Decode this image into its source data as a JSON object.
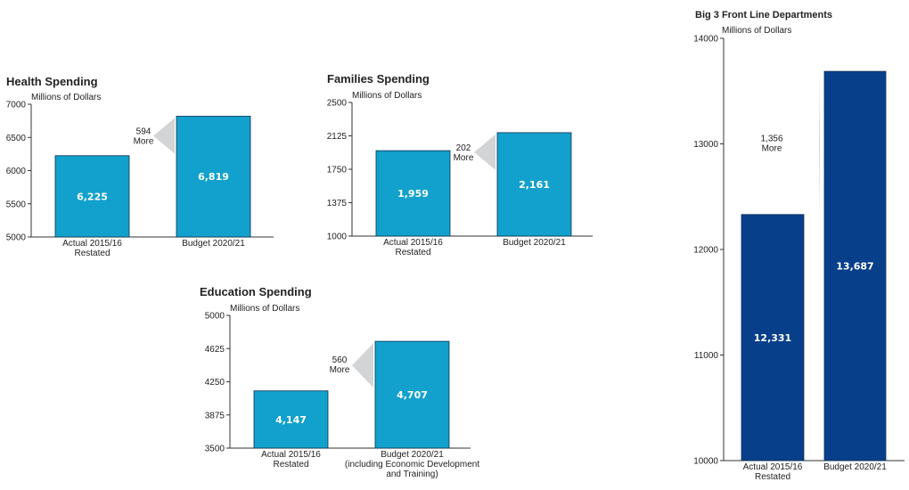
{
  "chart_data": [
    {
      "type": "bar",
      "title": "Health Spending",
      "ylabel": "Millions of Dollars",
      "ylim": [
        5000,
        7000
      ],
      "yticks": [
        5000,
        5500,
        6000,
        6500,
        7000
      ],
      "categories": [
        [
          "Actual 2015/16",
          "Restated"
        ],
        [
          "Budget 2020/21"
        ]
      ],
      "values": [
        6225,
        6819
      ],
      "value_labels": [
        "6,225",
        "6,819"
      ],
      "bar_color": "#12a1cc",
      "annotation": [
        "594",
        "More"
      ]
    },
    {
      "type": "bar",
      "title": "Families Spending",
      "ylabel": "Millions of Dollars",
      "ylim": [
        1000,
        2500
      ],
      "yticks": [
        1000,
        1375,
        1750,
        2125,
        2500
      ],
      "categories": [
        [
          "Actual 2015/16",
          "Restated"
        ],
        [
          "Budget 2020/21"
        ]
      ],
      "values": [
        1959,
        2161
      ],
      "value_labels": [
        "1,959",
        "2,161"
      ],
      "bar_color": "#12a1cc",
      "annotation": [
        "202",
        "More"
      ]
    },
    {
      "type": "bar",
      "title": "Education Spending",
      "ylabel": "Millions of Dollars",
      "ylim": [
        3500,
        5000
      ],
      "yticks": [
        3500,
        3875,
        4250,
        4625,
        5000
      ],
      "categories": [
        [
          "Actual 2015/16",
          "Restated"
        ],
        [
          "Budget 2020/21",
          "(including Economic Development",
          "and Training)"
        ]
      ],
      "values": [
        4147,
        4707
      ],
      "value_labels": [
        "4,147",
        "4,707"
      ],
      "bar_color": "#12a1cc",
      "annotation": [
        "560",
        "More"
      ]
    },
    {
      "type": "bar",
      "title": "Big 3 Front Line Departments",
      "ylabel": "Millions of Dollars",
      "ylim": [
        10000,
        14000
      ],
      "yticks": [
        10000,
        11000,
        12000,
        13000,
        14000
      ],
      "categories": [
        [
          "Actual 2015/16",
          "Restated"
        ],
        [
          "Budget 2020/21"
        ]
      ],
      "values": [
        12331,
        13687
      ],
      "value_labels": [
        "12,331",
        "13,687"
      ],
      "bar_color": "#083f8a",
      "annotation": [
        "1,356",
        "More"
      ]
    }
  ]
}
